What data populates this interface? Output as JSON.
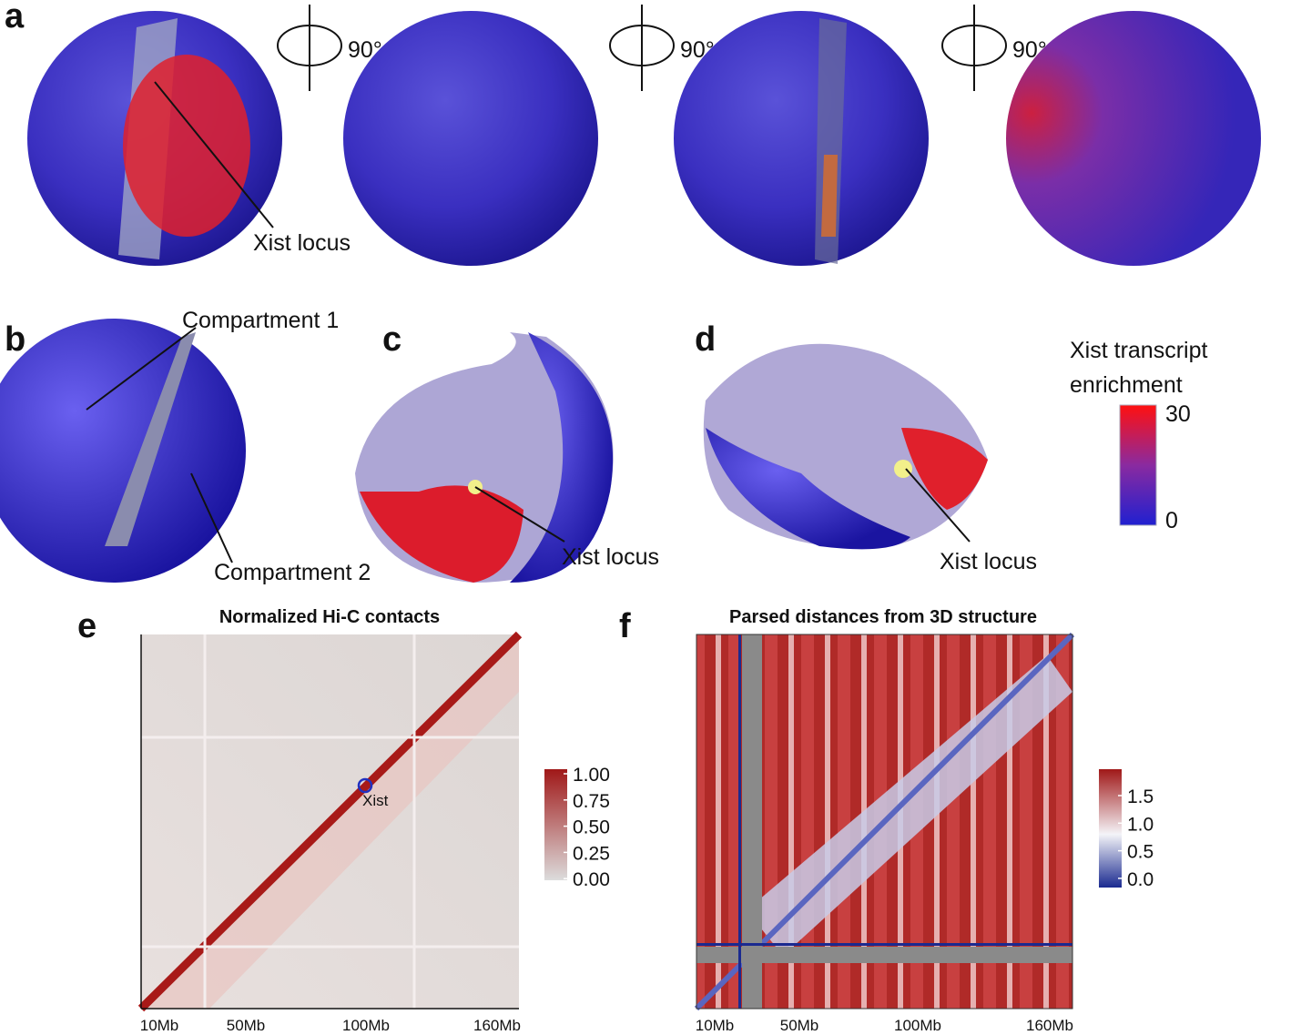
{
  "panels": {
    "a": {
      "label": "a",
      "rotation_labels": [
        "90°",
        "90°",
        "90°"
      ],
      "annotation": "Xist locus"
    },
    "b": {
      "label": "b",
      "annotations": [
        "Compartment 1",
        "Compartment 2"
      ]
    },
    "c": {
      "label": "c",
      "annotation": "Xist locus"
    },
    "d": {
      "label": "d",
      "annotation": "Xist locus"
    },
    "legend": {
      "title_lines": [
        "Xist transcript",
        "enrichment"
      ],
      "ticks": [
        "30",
        "0"
      ]
    },
    "e": {
      "label": "e",
      "title": "Normalized Hi-C contacts",
      "annotation": "Xist",
      "xticks": [
        "10Mb",
        "50Mb",
        "100Mb",
        "160Mb"
      ],
      "colorbar_ticks": [
        "1.00",
        "0.75",
        "0.50",
        "0.25",
        "0.00"
      ]
    },
    "f": {
      "label": "f",
      "title": "Parsed distances from 3D structure",
      "xticks": [
        "10Mb",
        "50Mb",
        "100Mb",
        "160Mb"
      ],
      "colorbar_ticks": [
        "1.5",
        "1.0",
        "0.5",
        "0.0"
      ]
    }
  }
}
